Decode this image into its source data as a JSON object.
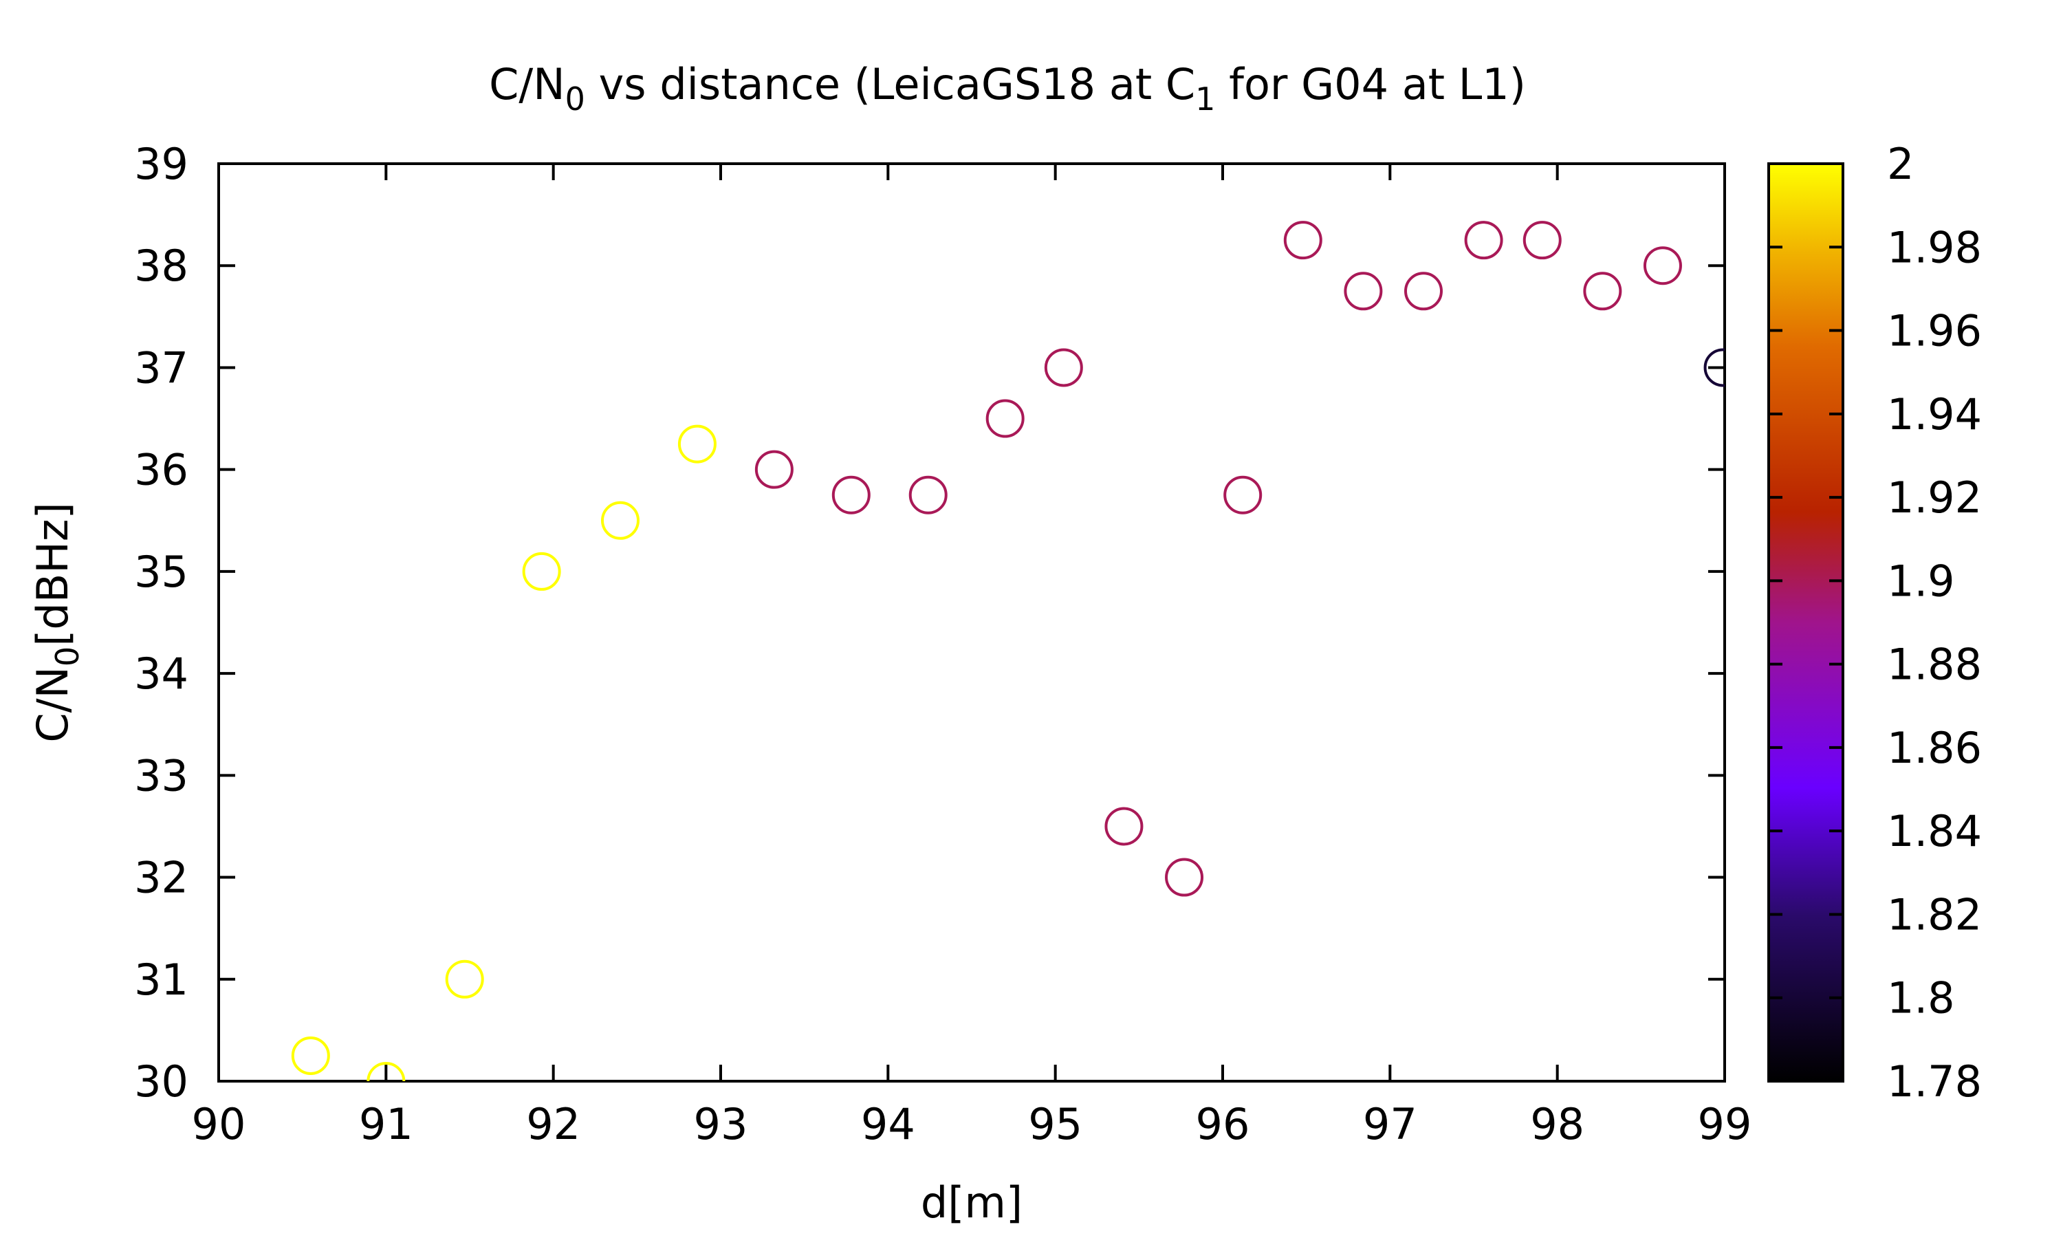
{
  "chart_data": {
    "type": "scatter",
    "title": {
      "prefix": "C/N",
      "sub1": "0",
      "middle": " vs distance (LeicaGS18 at C",
      "sub2": "1",
      "suffix": " for G04 at L1)"
    },
    "xlabel": "d[m]",
    "ylabel": {
      "prefix": "C/N",
      "sub": "0",
      "suffix": "[dBHz]"
    },
    "xlim": [
      90,
      99
    ],
    "ylim": [
      30,
      39
    ],
    "xticks": [
      "90",
      "91",
      "92",
      "93",
      "94",
      "95",
      "96",
      "97",
      "98",
      "99"
    ],
    "yticks": [
      "30",
      "31",
      "32",
      "33",
      "34",
      "35",
      "36",
      "37",
      "38",
      "39"
    ],
    "marker": "open-circle",
    "color_scale": {
      "range": [
        1.78,
        2.0
      ],
      "palette": "black-purple-red-orange-yellow",
      "ticks": [
        "1.78",
        "1.8",
        "1.82",
        "1.84",
        "1.86",
        "1.88",
        "1.9",
        "1.92",
        "1.94",
        "1.96",
        "1.98",
        "2"
      ]
    },
    "points": [
      {
        "x": 90.55,
        "y": 30.25,
        "c": 2.0
      },
      {
        "x": 91.0,
        "y": 30.0,
        "c": 2.0
      },
      {
        "x": 91.47,
        "y": 31.0,
        "c": 2.0
      },
      {
        "x": 91.93,
        "y": 35.0,
        "c": 2.0
      },
      {
        "x": 92.4,
        "y": 35.5,
        "c": 2.0
      },
      {
        "x": 92.86,
        "y": 36.25,
        "c": 2.0
      },
      {
        "x": 93.32,
        "y": 36.0,
        "c": 1.9
      },
      {
        "x": 93.78,
        "y": 35.75,
        "c": 1.9
      },
      {
        "x": 94.24,
        "y": 35.75,
        "c": 1.9
      },
      {
        "x": 94.7,
        "y": 36.5,
        "c": 1.9
      },
      {
        "x": 95.05,
        "y": 37.0,
        "c": 1.9
      },
      {
        "x": 95.41,
        "y": 32.5,
        "c": 1.9
      },
      {
        "x": 95.77,
        "y": 32.0,
        "c": 1.9
      },
      {
        "x": 96.12,
        "y": 35.75,
        "c": 1.9
      },
      {
        "x": 96.48,
        "y": 38.25,
        "c": 1.9
      },
      {
        "x": 96.84,
        "y": 37.75,
        "c": 1.9
      },
      {
        "x": 97.2,
        "y": 37.75,
        "c": 1.9
      },
      {
        "x": 97.56,
        "y": 38.25,
        "c": 1.9
      },
      {
        "x": 97.91,
        "y": 38.25,
        "c": 1.9
      },
      {
        "x": 98.27,
        "y": 37.75,
        "c": 1.9
      },
      {
        "x": 98.63,
        "y": 38.0,
        "c": 1.9
      },
      {
        "x": 98.99,
        "y": 37.0,
        "c": 1.8
      }
    ]
  }
}
